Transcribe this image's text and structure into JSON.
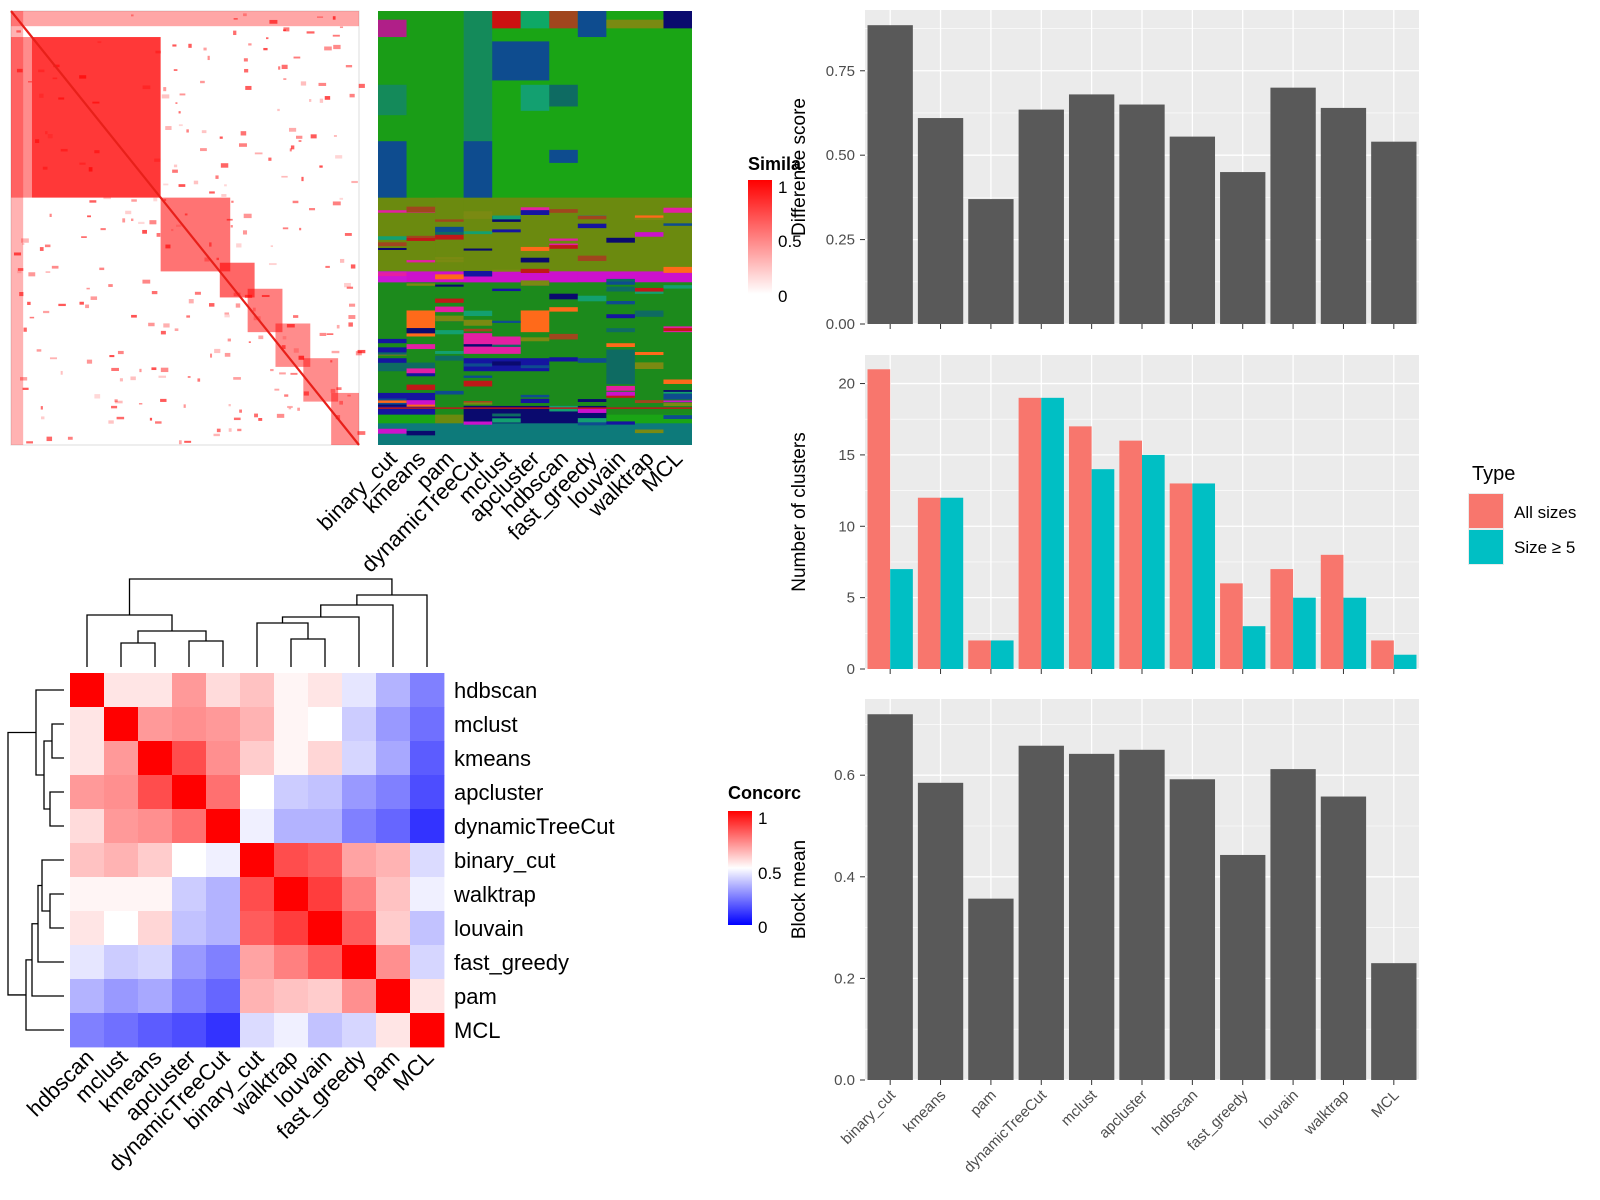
{
  "chart_data": [
    {
      "id": "similarity_heatmap",
      "type": "heatmap",
      "legend_title": "Simila",
      "legend_ticks": [
        "1",
        "0.5",
        "0"
      ],
      "column_labels": [
        "binary_cut",
        "kmeans",
        "pam",
        "dynamicTreeCut",
        "mclust",
        "apcluster",
        "hdbscan",
        "fast_greedy",
        "louvain",
        "walktrap",
        "MCL"
      ]
    },
    {
      "id": "concordance_heatmap",
      "type": "heatmap",
      "legend_title": "Concorc",
      "legend_ticks": [
        "1",
        "0.5",
        "0"
      ],
      "rows": [
        "hdbscan",
        "mclust",
        "kmeans",
        "apcluster",
        "dynamicTreeCut",
        "binary_cut",
        "walktrap",
        "louvain",
        "fast_greedy",
        "pam",
        "MCL"
      ],
      "cols": [
        "hdbscan",
        "mclust",
        "kmeans",
        "apcluster",
        "dynamicTreeCut",
        "binary_cut",
        "walktrap",
        "louvain",
        "fast_greedy",
        "pam",
        "MCL"
      ],
      "values": [
        [
          1.0,
          0.55,
          0.55,
          0.7,
          0.57,
          0.62,
          0.52,
          0.55,
          0.45,
          0.35,
          0.25
        ],
        [
          0.55,
          1.0,
          0.7,
          0.72,
          0.7,
          0.65,
          0.52,
          0.5,
          0.4,
          0.3,
          0.22
        ],
        [
          0.55,
          0.7,
          1.0,
          0.85,
          0.72,
          0.6,
          0.52,
          0.58,
          0.42,
          0.33,
          0.18
        ],
        [
          0.7,
          0.72,
          0.85,
          1.0,
          0.78,
          0.5,
          0.4,
          0.38,
          0.3,
          0.25,
          0.15
        ],
        [
          0.57,
          0.7,
          0.72,
          0.78,
          1.0,
          0.47,
          0.35,
          0.35,
          0.25,
          0.2,
          0.1
        ],
        [
          0.62,
          0.65,
          0.6,
          0.5,
          0.47,
          1.0,
          0.85,
          0.82,
          0.68,
          0.65,
          0.43
        ],
        [
          0.52,
          0.52,
          0.52,
          0.4,
          0.35,
          0.85,
          1.0,
          0.88,
          0.75,
          0.62,
          0.47
        ],
        [
          0.55,
          0.5,
          0.58,
          0.38,
          0.35,
          0.82,
          0.88,
          1.0,
          0.82,
          0.6,
          0.38
        ],
        [
          0.45,
          0.4,
          0.42,
          0.3,
          0.25,
          0.68,
          0.75,
          0.82,
          1.0,
          0.72,
          0.42
        ],
        [
          0.35,
          0.3,
          0.33,
          0.25,
          0.2,
          0.65,
          0.62,
          0.6,
          0.72,
          1.0,
          0.55
        ],
        [
          0.25,
          0.22,
          0.18,
          0.15,
          0.1,
          0.43,
          0.47,
          0.38,
          0.42,
          0.55,
          1.0
        ]
      ]
    },
    {
      "id": "difference_score",
      "type": "bar",
      "ylabel": "Difference score",
      "categories": [
        "binary_cut",
        "kmeans",
        "pam",
        "dynamicTreeCut",
        "mclust",
        "apcluster",
        "hdbscan",
        "fast_greedy",
        "louvain",
        "walktrap",
        "MCL"
      ],
      "values": [
        0.885,
        0.61,
        0.37,
        0.635,
        0.68,
        0.65,
        0.555,
        0.45,
        0.7,
        0.64,
        0.54
      ],
      "ylim": [
        0,
        0.93
      ],
      "yticks": [
        "0.00",
        "0.25",
        "0.50",
        "0.75"
      ],
      "bar_color": "#595959"
    },
    {
      "id": "number_of_clusters",
      "type": "bar",
      "ylabel": "Number of clusters",
      "categories": [
        "binary_cut",
        "kmeans",
        "pam",
        "dynamicTreeCut",
        "mclust",
        "apcluster",
        "hdbscan",
        "fast_greedy",
        "louvain",
        "walktrap",
        "MCL"
      ],
      "series": [
        {
          "name": "All sizes",
          "values": [
            21,
            12,
            2,
            19,
            17,
            16,
            13,
            6,
            7,
            8,
            2
          ],
          "color": "#F8766D"
        },
        {
          "name": "Size ≥ 5",
          "values": [
            7,
            12,
            2,
            19,
            14,
            15,
            13,
            3,
            5,
            5,
            1
          ],
          "color": "#00BFC4"
        }
      ],
      "ylim": [
        0,
        22
      ],
      "yticks": [
        "0",
        "5",
        "10",
        "15",
        "20"
      ],
      "legend_title": "Type",
      "legend_position": "right"
    },
    {
      "id": "block_mean",
      "type": "bar",
      "ylabel": "Block mean",
      "categories": [
        "binary_cut",
        "kmeans",
        "pam",
        "dynamicTreeCut",
        "mclust",
        "apcluster",
        "hdbscan",
        "fast_greedy",
        "louvain",
        "walktrap",
        "MCL"
      ],
      "values": [
        0.72,
        0.585,
        0.357,
        0.658,
        0.642,
        0.65,
        0.592,
        0.443,
        0.612,
        0.558,
        0.23
      ],
      "ylim": [
        0,
        0.75
      ],
      "yticks": [
        "0.0",
        "0.2",
        "0.4",
        "0.6"
      ],
      "bar_color": "#595959"
    }
  ]
}
